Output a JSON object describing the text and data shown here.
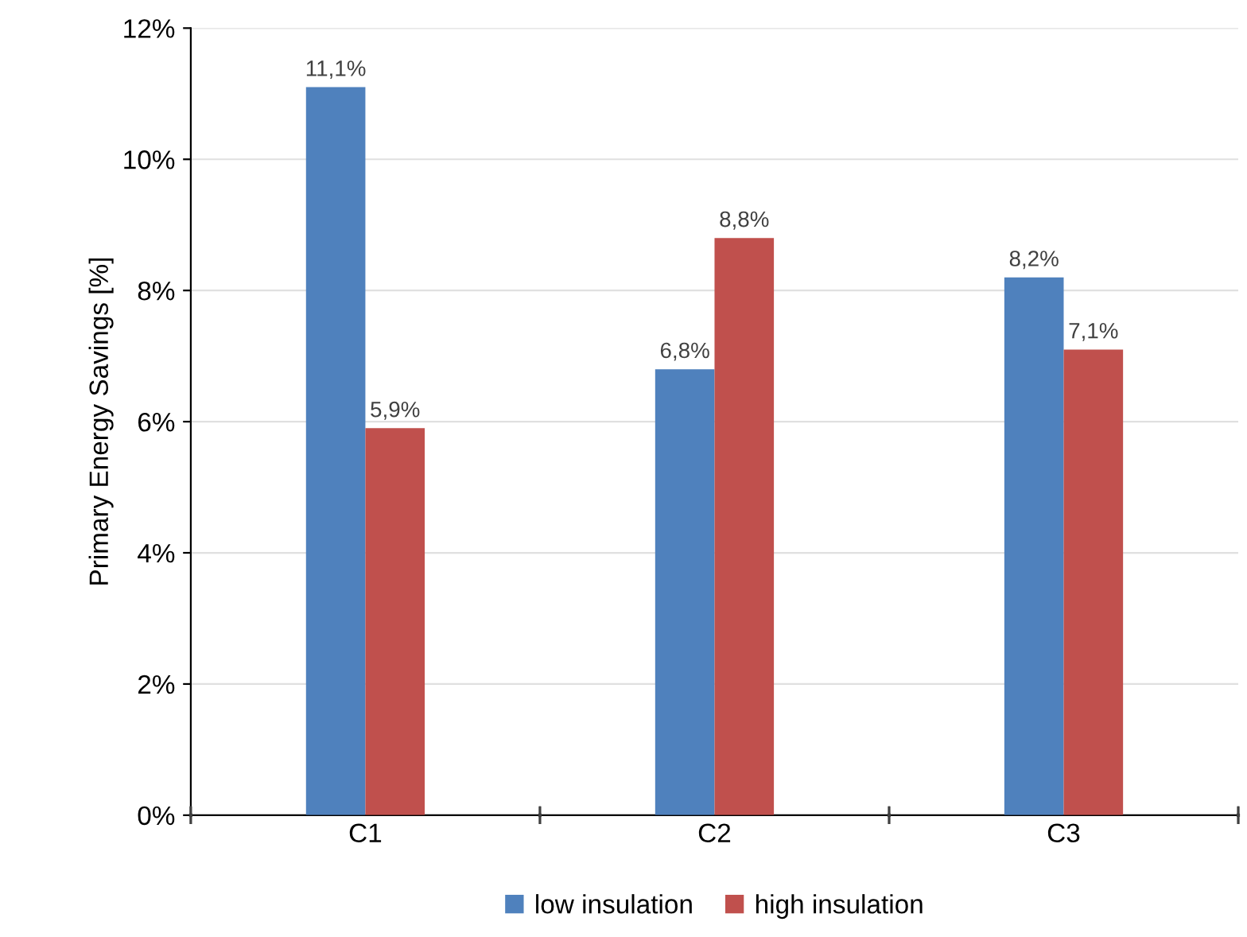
{
  "chart_data": {
    "type": "bar",
    "ylabel": "Primary Energy Savings [%]",
    "categories": [
      "C1",
      "C2",
      "C3"
    ],
    "series": [
      {
        "name": "low insulation",
        "color": "#4f81bd",
        "values": [
          11.1,
          6.8,
          8.2
        ],
        "value_labels": [
          "11,1%",
          "6,8%",
          "8,2%"
        ]
      },
      {
        "name": "high insulation",
        "color": "#c0504d",
        "values": [
          5.9,
          8.8,
          7.1
        ],
        "value_labels": [
          "5,9%",
          "8,8%",
          "7,1%"
        ]
      }
    ],
    "ylim": [
      0,
      12
    ],
    "yticks": [
      {
        "value": 0,
        "label": "0%"
      },
      {
        "value": 2,
        "label": "2%"
      },
      {
        "value": 4,
        "label": "4%"
      },
      {
        "value": 6,
        "label": "6%"
      },
      {
        "value": 8,
        "label": "8%"
      },
      {
        "value": 10,
        "label": "10%"
      },
      {
        "value": 12,
        "label": "12%"
      }
    ],
    "grid": "y",
    "legend": "bottom"
  }
}
